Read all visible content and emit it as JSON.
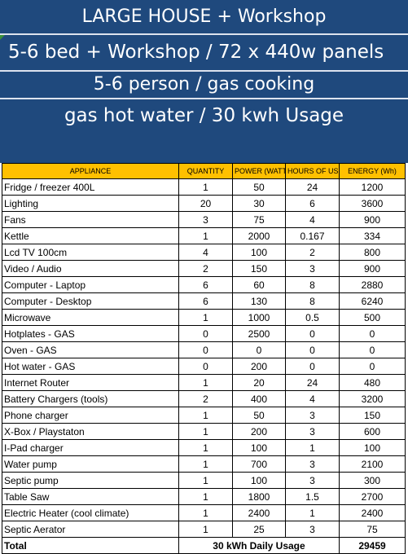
{
  "banners": [
    "LARGE HOUSE + Workshop",
    "5-6 bed + Workshop / 72 x 440w panels",
    "5-6 person / gas cooking",
    "gas hot water / 30 kwh Usage"
  ],
  "table": {
    "headers": [
      "APPLIANCE",
      "QUANTITY",
      "POWER (WATTS)",
      "HOURS OF USE",
      "ENERGY (Wh)"
    ],
    "rows": [
      [
        "Fridge / freezer  400L",
        "1",
        "50",
        "24",
        "1200"
      ],
      [
        "Lighting",
        "20",
        "30",
        "6",
        "3600"
      ],
      [
        "Fans",
        "3",
        "75",
        "4",
        "900"
      ],
      [
        "Kettle",
        "1",
        "2000",
        "0.167",
        "334"
      ],
      [
        "Lcd TV 100cm",
        "4",
        "100",
        "2",
        "800"
      ],
      [
        "Video / Audio",
        "2",
        "150",
        "3",
        "900"
      ],
      [
        "Computer - Laptop",
        "6",
        "60",
        "8",
        "2880"
      ],
      [
        "Computer - Desktop",
        "6",
        "130",
        "8",
        "6240"
      ],
      [
        "Microwave",
        "1",
        "1000",
        "0.5",
        "500"
      ],
      [
        "Hotplates  -  GAS",
        "0",
        "2500",
        "0",
        "0"
      ],
      [
        "Oven        -  GAS",
        "0",
        "0",
        "0",
        "0"
      ],
      [
        "Hot water  -  GAS",
        "0",
        "200",
        "0",
        "0"
      ],
      [
        "Internet Router",
        "1",
        "20",
        "24",
        "480"
      ],
      [
        "Battery Chargers (tools)",
        "2",
        "400",
        "4",
        "3200"
      ],
      [
        "Phone charger",
        "1",
        "50",
        "3",
        "150"
      ],
      [
        "X-Box / Playstaton",
        "1",
        "200",
        "3",
        "600"
      ],
      [
        "I-Pad charger",
        "1",
        "100",
        "1",
        "100"
      ],
      [
        "Water pump",
        "1",
        "700",
        "3",
        "2100"
      ],
      [
        "Septic pump",
        "1",
        "100",
        "3",
        "300"
      ],
      [
        "Table Saw",
        "1",
        "1800",
        "1.5",
        "2700"
      ],
      [
        "Electric Heater (cool climate)",
        "1",
        "2400",
        "1",
        "2400"
      ],
      [
        "Septic  Aerator",
        "1",
        "25",
        "3",
        "75"
      ]
    ],
    "total": {
      "label": "Total",
      "usage": "30  kWh Daily Usage",
      "energy": "29459"
    }
  },
  "colors": {
    "banner": "#1f497d",
    "header": "#ffc000"
  }
}
